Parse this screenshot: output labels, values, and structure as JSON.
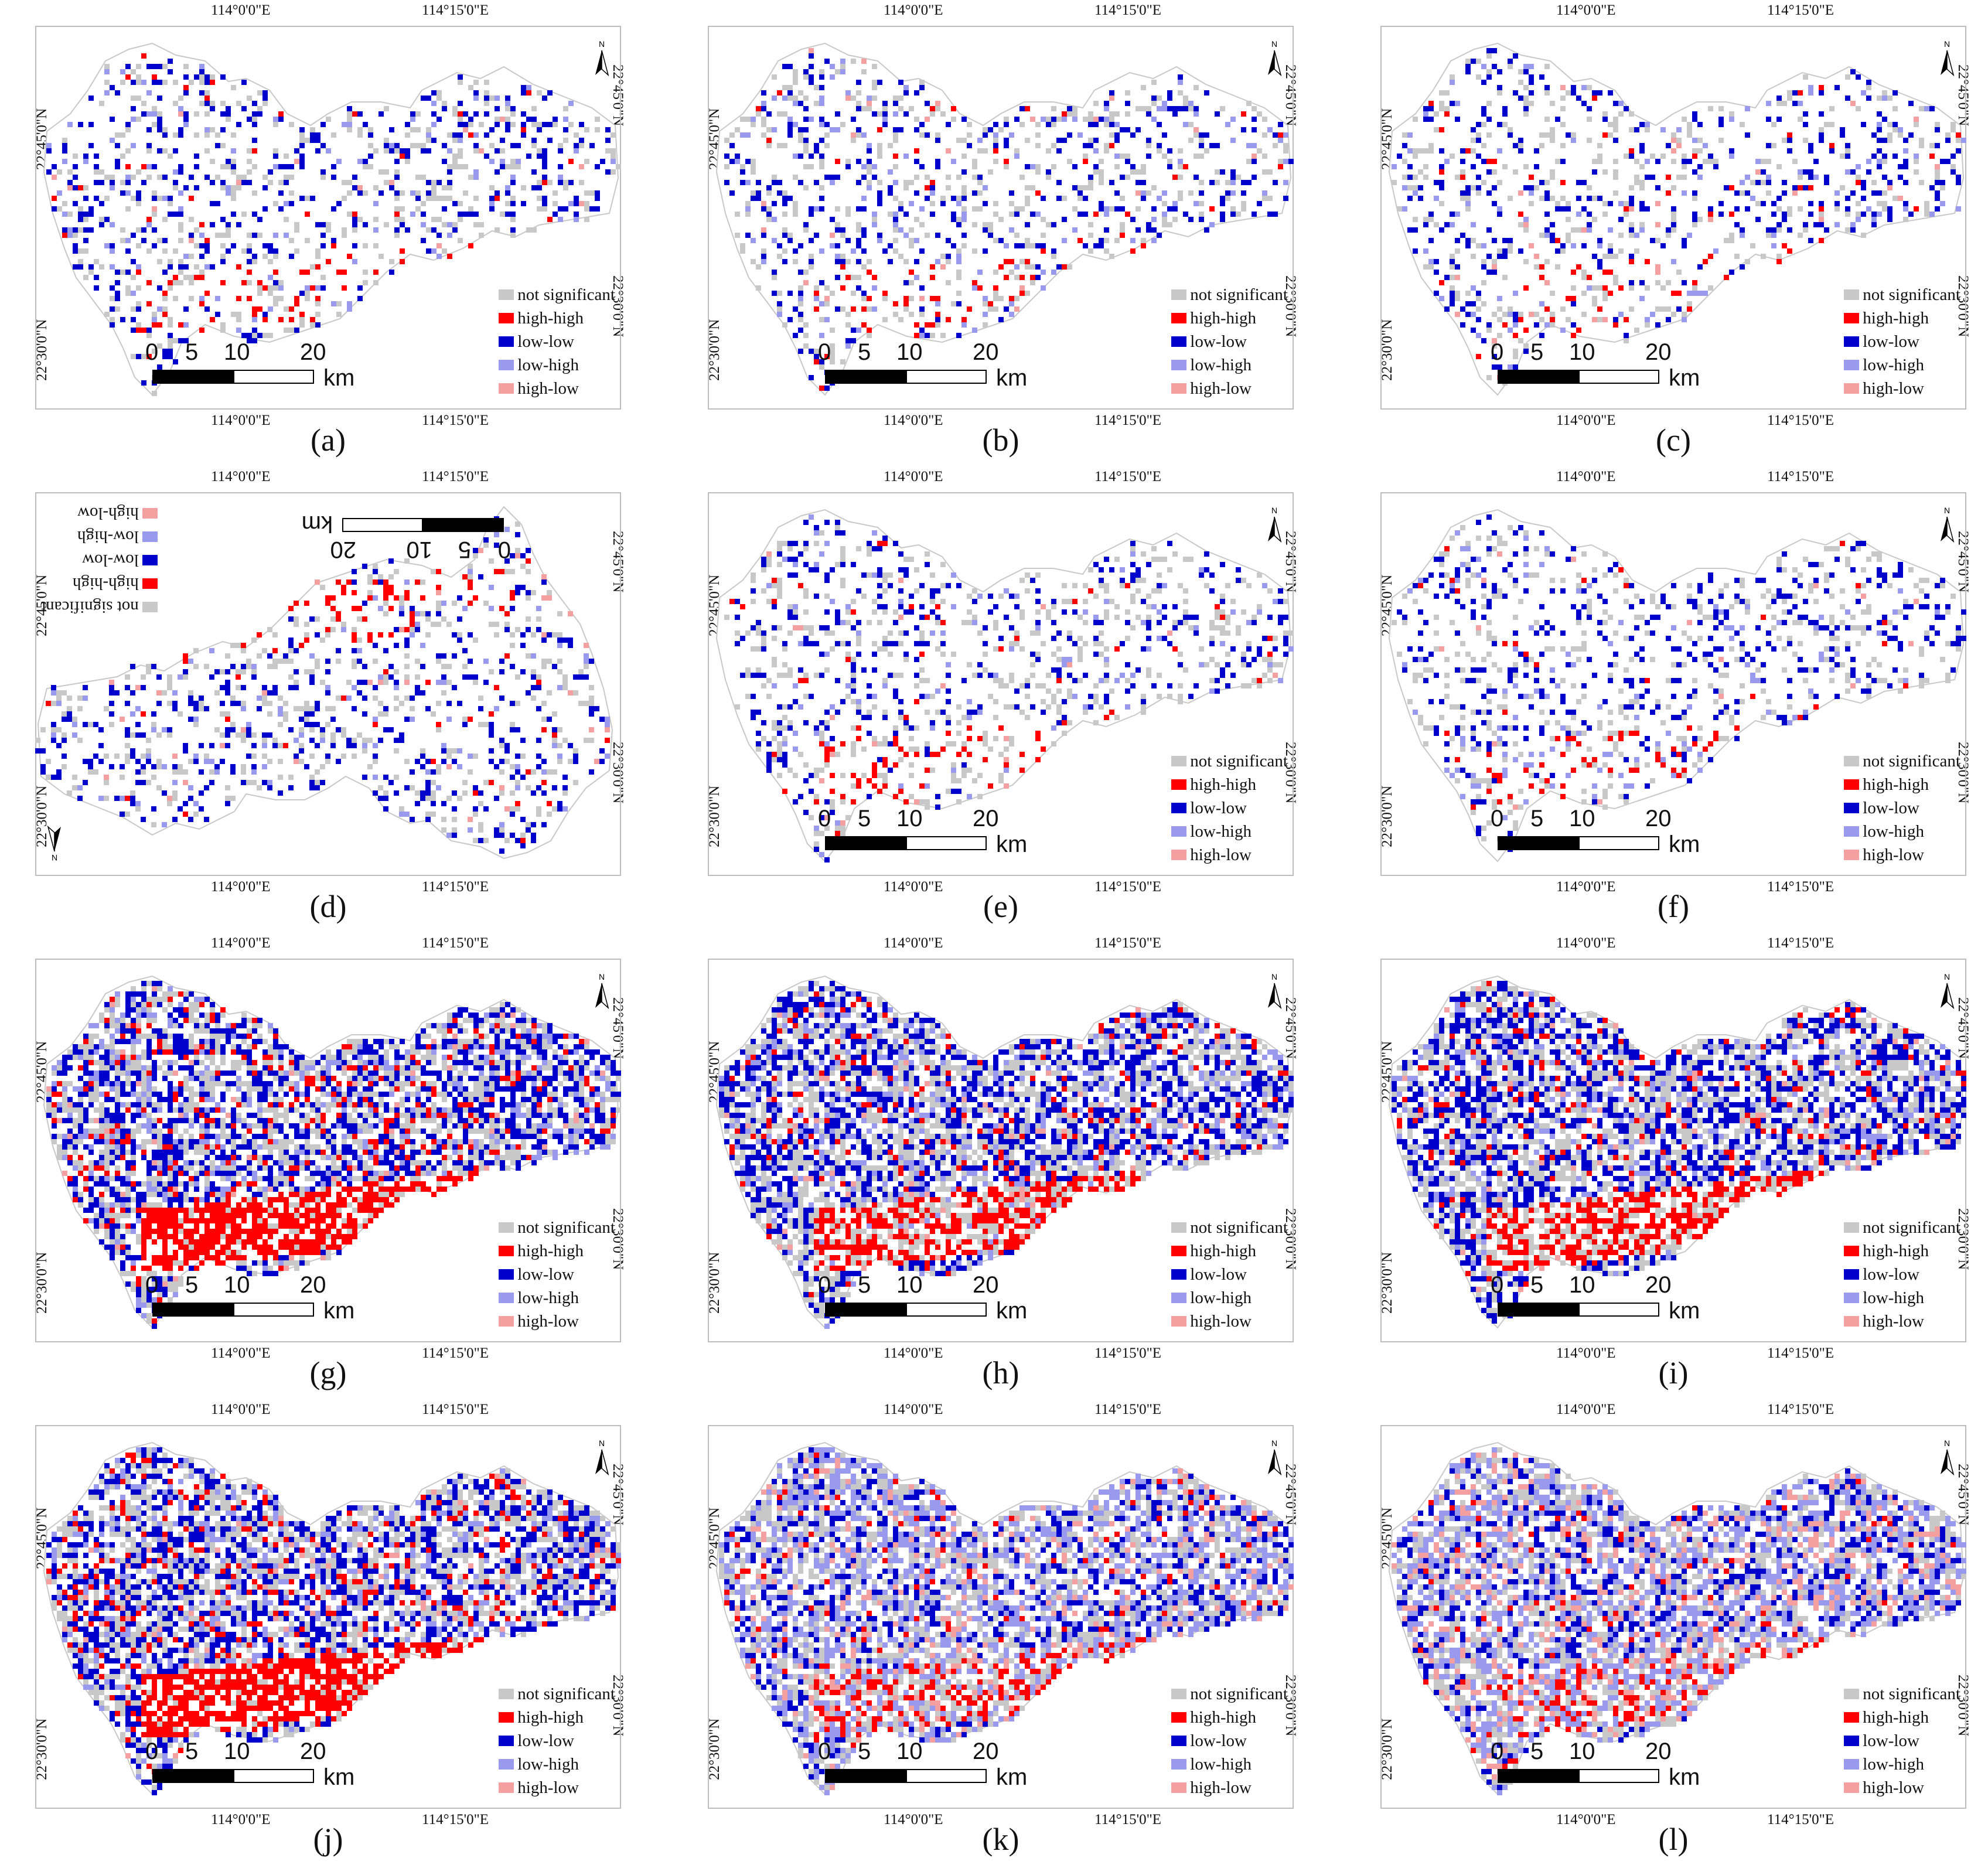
{
  "coordinates": {
    "lon_left": "114°0'0\"E",
    "lon_right": "114°15'0\"E",
    "lat_top": "22°45'0\"N",
    "lat_bottom": "22°30'0\"N"
  },
  "legend": [
    {
      "label": "not significant",
      "color": "#c8c8c8"
    },
    {
      "label": "high-high",
      "color": "#ff0000"
    },
    {
      "label": "low-low",
      "color": "#0000cc"
    },
    {
      "label": "low-high",
      "color": "#9999ee"
    },
    {
      "label": "high-low",
      "color": "#f4a0a0"
    }
  ],
  "scale": {
    "ticks": [
      "0",
      "5",
      "10",
      "20"
    ],
    "unit": "km"
  },
  "north_label": "N",
  "panels": [
    {
      "label": "(a)",
      "row": 0,
      "col": 0,
      "density": 0.25,
      "hh": 0.08,
      "ll": 0.42,
      "lh": 0.12,
      "hl": 0.02
    },
    {
      "label": "(b)",
      "row": 0,
      "col": 1,
      "density": 0.25,
      "hh": 0.08,
      "ll": 0.42,
      "lh": 0.12,
      "hl": 0.02
    },
    {
      "label": "(c)",
      "row": 0,
      "col": 2,
      "density": 0.24,
      "hh": 0.08,
      "ll": 0.42,
      "lh": 0.12,
      "hl": 0.03
    },
    {
      "label": "(d)",
      "row": 1,
      "col": 0,
      "density": 0.24,
      "hh": 0.08,
      "ll": 0.42,
      "lh": 0.12,
      "hl": 0.03,
      "mirrored": true
    },
    {
      "label": "(e)",
      "row": 1,
      "col": 1,
      "density": 0.24,
      "hh": 0.1,
      "ll": 0.38,
      "lh": 0.1,
      "hl": 0.02
    },
    {
      "label": "(f)",
      "row": 1,
      "col": 2,
      "density": 0.24,
      "hh": 0.08,
      "ll": 0.42,
      "lh": 0.12,
      "hl": 0.03
    },
    {
      "label": "(g)",
      "row": 2,
      "col": 0,
      "density": 0.72,
      "hh": 0.22,
      "ll": 0.38,
      "lh": 0.12,
      "hl": 0.03
    },
    {
      "label": "(h)",
      "row": 2,
      "col": 1,
      "density": 0.72,
      "hh": 0.14,
      "ll": 0.4,
      "lh": 0.14,
      "hl": 0.03
    },
    {
      "label": "(i)",
      "row": 2,
      "col": 2,
      "density": 0.72,
      "hh": 0.16,
      "ll": 0.42,
      "lh": 0.12,
      "hl": 0.03
    },
    {
      "label": "(j)",
      "row": 3,
      "col": 0,
      "density": 0.72,
      "hh": 0.22,
      "ll": 0.38,
      "lh": 0.14,
      "hl": 0.03
    },
    {
      "label": "(k)",
      "row": 3,
      "col": 1,
      "density": 0.72,
      "hh": 0.08,
      "ll": 0.22,
      "lh": 0.36,
      "hl": 0.1
    },
    {
      "label": "(l)",
      "row": 3,
      "col": 2,
      "density": 0.72,
      "hh": 0.06,
      "ll": 0.2,
      "lh": 0.36,
      "hl": 0.16
    }
  ]
}
